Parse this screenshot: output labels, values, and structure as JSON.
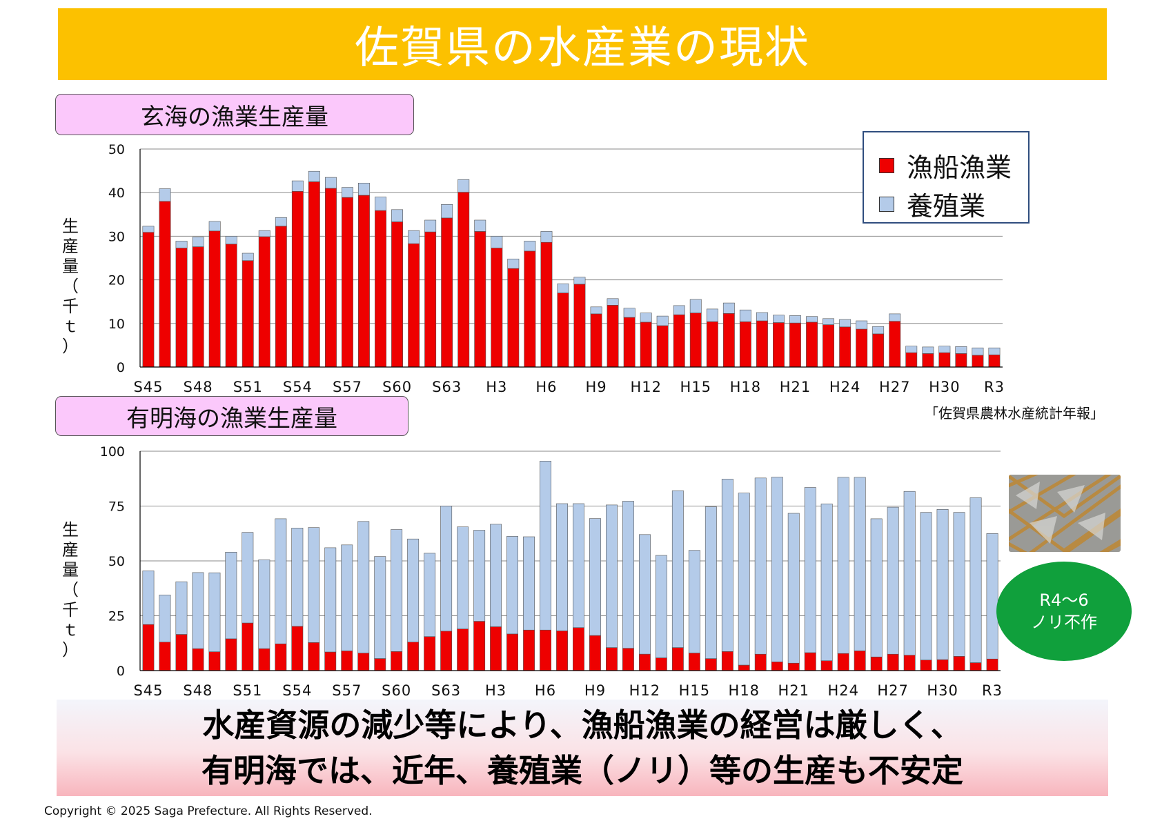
{
  "header": {
    "title": "佐賀県の水産業の現状"
  },
  "colors": {
    "banner": "#fcc100",
    "fishing": "#ee0000",
    "aquaculture": "#b4cbe9",
    "badge": "#10a03c",
    "label_bg": "#fbc8fb"
  },
  "legend": {
    "fishing": "漁船漁業",
    "aquaculture": "養殖業"
  },
  "source": "「佐賀県農林水産統計年報」",
  "badge": {
    "line1": "R4～6",
    "line2": "ノリ不作"
  },
  "conclusion": {
    "line1": "水産資源の減少等により、漁船漁業の経営は厳しく、",
    "line2": "有明海では、近年、養殖業（ノリ）等の生産も不安定"
  },
  "copyright": "Copyright © 2025 Saga Prefecture. All Rights Reserved.",
  "chart_data": [
    {
      "type": "bar",
      "stacked": true,
      "title": "玄海の漁業生産量",
      "ylabel": "生産量（千ｔ）",
      "ylim": [
        0,
        50
      ],
      "yticks": [
        0,
        10,
        20,
        30,
        40,
        50
      ],
      "xtick_labels": [
        "S45",
        "S48",
        "S51",
        "S54",
        "S57",
        "S60",
        "S63",
        "H3",
        "H6",
        "H9",
        "H12",
        "H15",
        "H18",
        "H21",
        "H24",
        "H27",
        "H30",
        "R3"
      ],
      "series": [
        {
          "name": "漁船漁業",
          "values": [
            30.9,
            38,
            27.3,
            27.6,
            31.2,
            28.2,
            24.4,
            29.9,
            32.3,
            40.3,
            42.5,
            41,
            38.9,
            39.4,
            35.9,
            33.3,
            28.3,
            31,
            34.2,
            40.1,
            31.1,
            27.3,
            22.6,
            26.6,
            28.6,
            17,
            19,
            12.2,
            14.2,
            11.4,
            10.3,
            9.5,
            12,
            12.4,
            10.4,
            12.3,
            10.4,
            10.6,
            10.2,
            10.1,
            10.3,
            9.7,
            9.2,
            8.7,
            7.6,
            10.5,
            3.3,
            3.1,
            3.3,
            3.1,
            2.7,
            2.8
          ]
        },
        {
          "name": "養殖業",
          "values": [
            1.4,
            2.9,
            1.6,
            2.2,
            2.2,
            1.8,
            1.7,
            1.4,
            2,
            2.4,
            2.4,
            2.5,
            2.3,
            2.8,
            3.1,
            2.8,
            3,
            2.7,
            3.1,
            2.9,
            2.6,
            2.7,
            2.2,
            2.3,
            2.5,
            2.1,
            1.6,
            1.6,
            1.5,
            2.1,
            2.1,
            2.2,
            2.1,
            3.1,
            2.9,
            2.4,
            2.7,
            1.9,
            1.7,
            1.7,
            1.3,
            1.4,
            1.7,
            1.9,
            1.7,
            1.7,
            1.5,
            1.5,
            1.5,
            1.6,
            1.7,
            1.6
          ]
        }
      ]
    },
    {
      "type": "bar",
      "stacked": true,
      "title": "有明海の漁業生産量",
      "ylabel": "生産量（千ｔ）",
      "ylim": [
        0,
        100
      ],
      "yticks": [
        0,
        25,
        50,
        75,
        100
      ],
      "xtick_labels": [
        "S45",
        "S48",
        "S51",
        "S54",
        "S57",
        "S60",
        "S63",
        "H3",
        "H6",
        "H9",
        "H12",
        "H15",
        "H18",
        "H21",
        "H24",
        "H27",
        "H30",
        "R3"
      ],
      "series": [
        {
          "name": "漁船漁業",
          "values": [
            21,
            13,
            16.5,
            10,
            8.6,
            14.5,
            21.7,
            10,
            12.2,
            20.2,
            12.8,
            8.5,
            9,
            8,
            5.5,
            8.7,
            13,
            15.5,
            18,
            19,
            22.5,
            20,
            16.7,
            18.5,
            18.5,
            18.1,
            19.6,
            16,
            10.5,
            10.2,
            7.5,
            5.8,
            10.5,
            8,
            5.5,
            8.7,
            2.5,
            7.5,
            4,
            3.4,
            8.2,
            4.5,
            7.8,
            9,
            6.2,
            7.5,
            7,
            4.8,
            5,
            6.5,
            3.6,
            5.3
          ]
        },
        {
          "name": "養殖業",
          "values": [
            24.5,
            21.5,
            24,
            34.7,
            36,
            39.5,
            41.3,
            40.5,
            57,
            44.8,
            52.4,
            47.5,
            48.3,
            60,
            46.5,
            55.6,
            47,
            38,
            57,
            46.5,
            41.5,
            46.7,
            44.5,
            42.5,
            77,
            58,
            56.5,
            53.3,
            65,
            67,
            54.5,
            46.7,
            71.5,
            46.8,
            69.2,
            78.6,
            78.4,
            80.3,
            84.2,
            68.3,
            75.3,
            71.5,
            80.3,
            79.1,
            63,
            67,
            74.7,
            67.3,
            68.5,
            65.6,
            75.2,
            57.2
          ]
        }
      ]
    }
  ]
}
